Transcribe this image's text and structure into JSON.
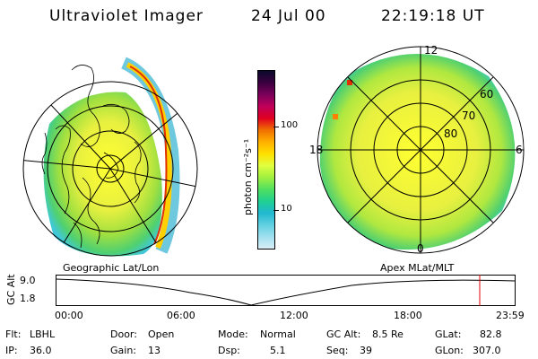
{
  "header": {
    "instrument": "Ultraviolet Imager",
    "date": "24 Jul 00",
    "time": "22:19:18 UT"
  },
  "left_map": {
    "label": "Geographic Lat/Lon"
  },
  "right_map": {
    "label": "Apex MLat/MLT",
    "lat_labels": [
      "60",
      "70",
      "80"
    ],
    "mlt_labels": [
      "12",
      "6",
      "0",
      "18"
    ]
  },
  "colorbar": {
    "unit_label": "photon cm⁻²s⁻¹",
    "ticks": [
      "100",
      "10"
    ],
    "colors": [
      "#0a0a2a",
      "#3a0040",
      "#7a005a",
      "#c0005a",
      "#e00020",
      "#f07000",
      "#ffb000",
      "#ffe000",
      "#e0ff40",
      "#a0f040",
      "#50e060",
      "#20d090",
      "#20b8d0",
      "#60d0e0",
      "#a0e0f0",
      "#d8eef6"
    ]
  },
  "timeline": {
    "ylabel": "GC Alt",
    "y_ticks": [
      "9.0",
      "1.8"
    ],
    "x_ticks": [
      "00:00",
      "06:00",
      "12:00",
      "18:00",
      "23:59"
    ],
    "marker_color": "#e00000"
  },
  "status": {
    "flt_label": "Flt:",
    "flt_value": "LBHL",
    "ip_label": "IP:",
    "ip_value": "36.0",
    "door_label": "Door:",
    "door_value": "Open",
    "gain_label": "Gain:",
    "gain_value": "13",
    "mode_label": "Mode:",
    "mode_value": "Normal",
    "dsp_label": "Dsp:",
    "dsp_value": "5.1",
    "gcalt_label": "GC Alt:",
    "gcalt_value": "8.5 Re",
    "seq_label": "Seq:",
    "seq_value": "39",
    "glat_label": "GLat:",
    "glat_value": "82.8",
    "glon_label": "GLon:",
    "glon_value": "307.0"
  }
}
